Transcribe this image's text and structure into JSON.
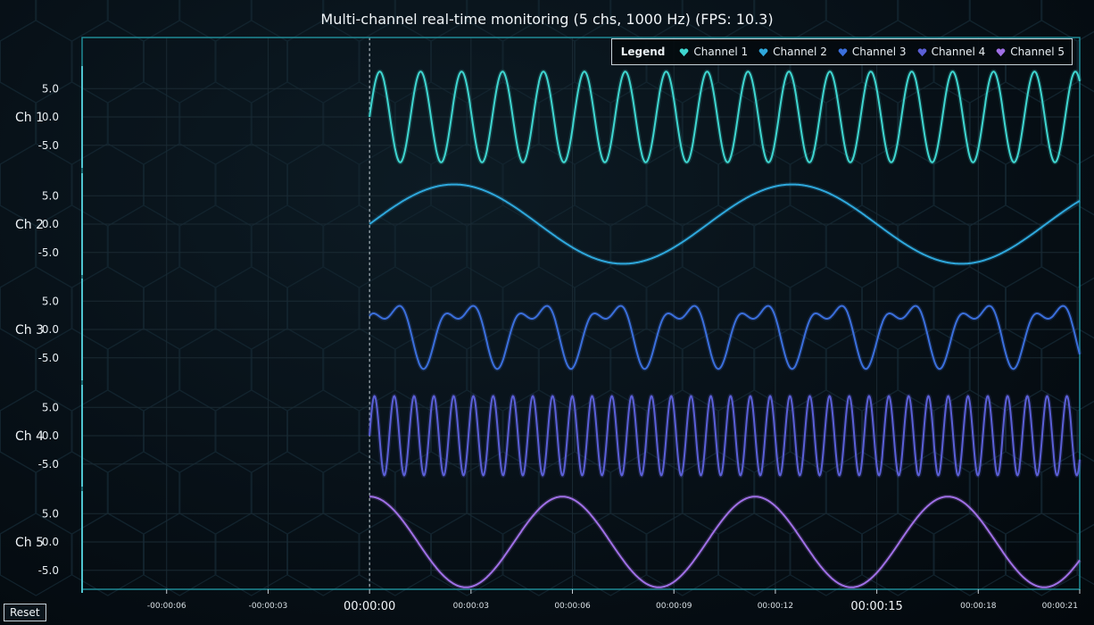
{
  "chart_data": {
    "type": "line",
    "title": "Multi-channel real-time monitoring (5 chs, 1000 Hz) (FPS: 10.3)",
    "legend": {
      "title": "Legend",
      "position": "top-right",
      "entries": [
        "Channel 1",
        "Channel 2",
        "Channel 3",
        "Channel 4",
        "Channel 5"
      ]
    },
    "x_axis": {
      "range_seconds": [
        -8.5,
        21
      ],
      "data_start_seconds": 0,
      "ticks": [
        {
          "value": -6,
          "label": "-00:00:06",
          "major": false
        },
        {
          "value": -3,
          "label": "-00:00:03",
          "major": false
        },
        {
          "value": 0,
          "label": "00:00:00",
          "major": true
        },
        {
          "value": 3,
          "label": "00:00:03",
          "major": false
        },
        {
          "value": 6,
          "label": "00:00:06",
          "major": false
        },
        {
          "value": 9,
          "label": "00:00:09",
          "major": false
        },
        {
          "value": 12,
          "label": "00:00:12",
          "major": false
        },
        {
          "value": 15,
          "label": "00:00:15",
          "major": true
        },
        {
          "value": 18,
          "label": "00:00:18",
          "major": false
        },
        {
          "value": 21,
          "label": "00:00:21",
          "major": false
        }
      ]
    },
    "series": [
      {
        "name": "Channel 1",
        "label": "Ch 1",
        "color": "#3fd6d0",
        "ylim": [
          -8,
          8
        ],
        "y_ticks": [
          "5.0",
          "0.0",
          "-5.0"
        ],
        "y_tick_values": [
          5,
          0,
          -5
        ],
        "components": [
          {
            "amplitude": 8,
            "period_s": 1.21,
            "phase": 0
          }
        ]
      },
      {
        "name": "Channel 2",
        "label": "Ch 2",
        "color": "#2fa8dc",
        "ylim": [
          -8,
          8
        ],
        "y_ticks": [
          "5.0",
          "0.0",
          "-5.0"
        ],
        "y_tick_values": [
          5,
          0,
          -5
        ],
        "components": [
          {
            "amplitude": 7,
            "period_s": 10.0,
            "phase": 0
          }
        ]
      },
      {
        "name": "Channel 3",
        "label": "Ch 3",
        "color": "#3b6fdc",
        "ylim": [
          -8,
          8
        ],
        "y_ticks": [
          "5.0",
          "0.0",
          "-5.0"
        ],
        "y_tick_values": [
          5,
          0,
          -5
        ],
        "components": [
          {
            "amplitude": 4.5,
            "period_s": 2.18,
            "phase": 0
          },
          {
            "amplitude": 2.5,
            "period_s": 1.09,
            "phase": 1.9
          }
        ]
      },
      {
        "name": "Channel 4",
        "label": "Ch 4",
        "color": "#5b5fd6",
        "ylim": [
          -8,
          8
        ],
        "y_ticks": [
          "5.0",
          "0.0",
          "-5.0"
        ],
        "y_tick_values": [
          5,
          0,
          -5
        ],
        "components": [
          {
            "amplitude": 7,
            "period_s": 0.585,
            "phase": 0
          }
        ]
      },
      {
        "name": "Channel 5",
        "label": "Ch 5",
        "color": "#a070e6",
        "ylim": [
          -8,
          8
        ],
        "y_ticks": [
          "5.0",
          "0.0",
          "-5.0"
        ],
        "y_tick_values": [
          5,
          0,
          -5
        ],
        "components": [
          {
            "amplitude": 8,
            "period_s": 5.7,
            "phase": 1.5708
          }
        ]
      }
    ]
  },
  "controls": {
    "reset_label": "Reset"
  },
  "colors": {
    "background": "#071017",
    "axis": "#1f8a95",
    "grid": "#1a2a33"
  }
}
